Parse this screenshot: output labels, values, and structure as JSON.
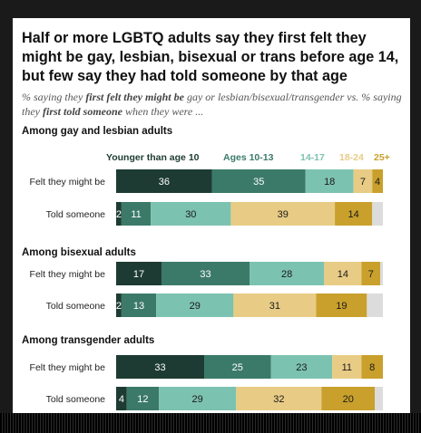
{
  "header": {
    "headline": "Half or more LGBTQ adults say they first felt they might be gay, lesbian, bisexual or trans before age 14, but few say they had told someone by that age",
    "subtitle_parts": [
      {
        "text": "% saying they ",
        "bold": false
      },
      {
        "text": "first felt they might be",
        "bold": true
      },
      {
        "text": " gay or lesbian/bisexual/transgender vs. % saying they ",
        "bold": false
      },
      {
        "text": "first told someone",
        "bold": true
      },
      {
        "text": " when they were ...",
        "bold": false
      }
    ]
  },
  "colors": {
    "series": [
      "#1d3b32",
      "#3b7a68",
      "#7cc2b0",
      "#e8cc85",
      "#c9a02c"
    ],
    "label_text": [
      "#ffffff",
      "#ffffff",
      "#1a1a1a",
      "#1a1a1a",
      "#1a1a1a"
    ],
    "remainder": "#dcdcdc"
  },
  "chart_data": {
    "type": "bar",
    "orientation": "horizontal",
    "stacked": true,
    "series_names": [
      "Younger than age 10",
      "Ages 10-13",
      "14-17",
      "18-24",
      "25+"
    ],
    "groups": [
      {
        "title": "Among gay and lesbian adults",
        "rows": [
          {
            "label": "Felt they might be",
            "values": [
              36,
              35,
              18,
              7,
              4
            ]
          },
          {
            "label": "Told someone",
            "values": [
              2,
              11,
              30,
              39,
              14
            ]
          }
        ]
      },
      {
        "title": "Among bisexual adults",
        "rows": [
          {
            "label": "Felt they might be",
            "values": [
              17,
              33,
              28,
              14,
              7
            ]
          },
          {
            "label": "Told someone",
            "values": [
              2,
              13,
              29,
              31,
              19
            ]
          }
        ]
      },
      {
        "title": "Among transgender adults",
        "rows": [
          {
            "label": "Felt they might be",
            "values": [
              33,
              25,
              23,
              11,
              8
            ]
          },
          {
            "label": "Told someone",
            "values": [
              4,
              12,
              29,
              32,
              20
            ]
          }
        ]
      }
    ]
  }
}
